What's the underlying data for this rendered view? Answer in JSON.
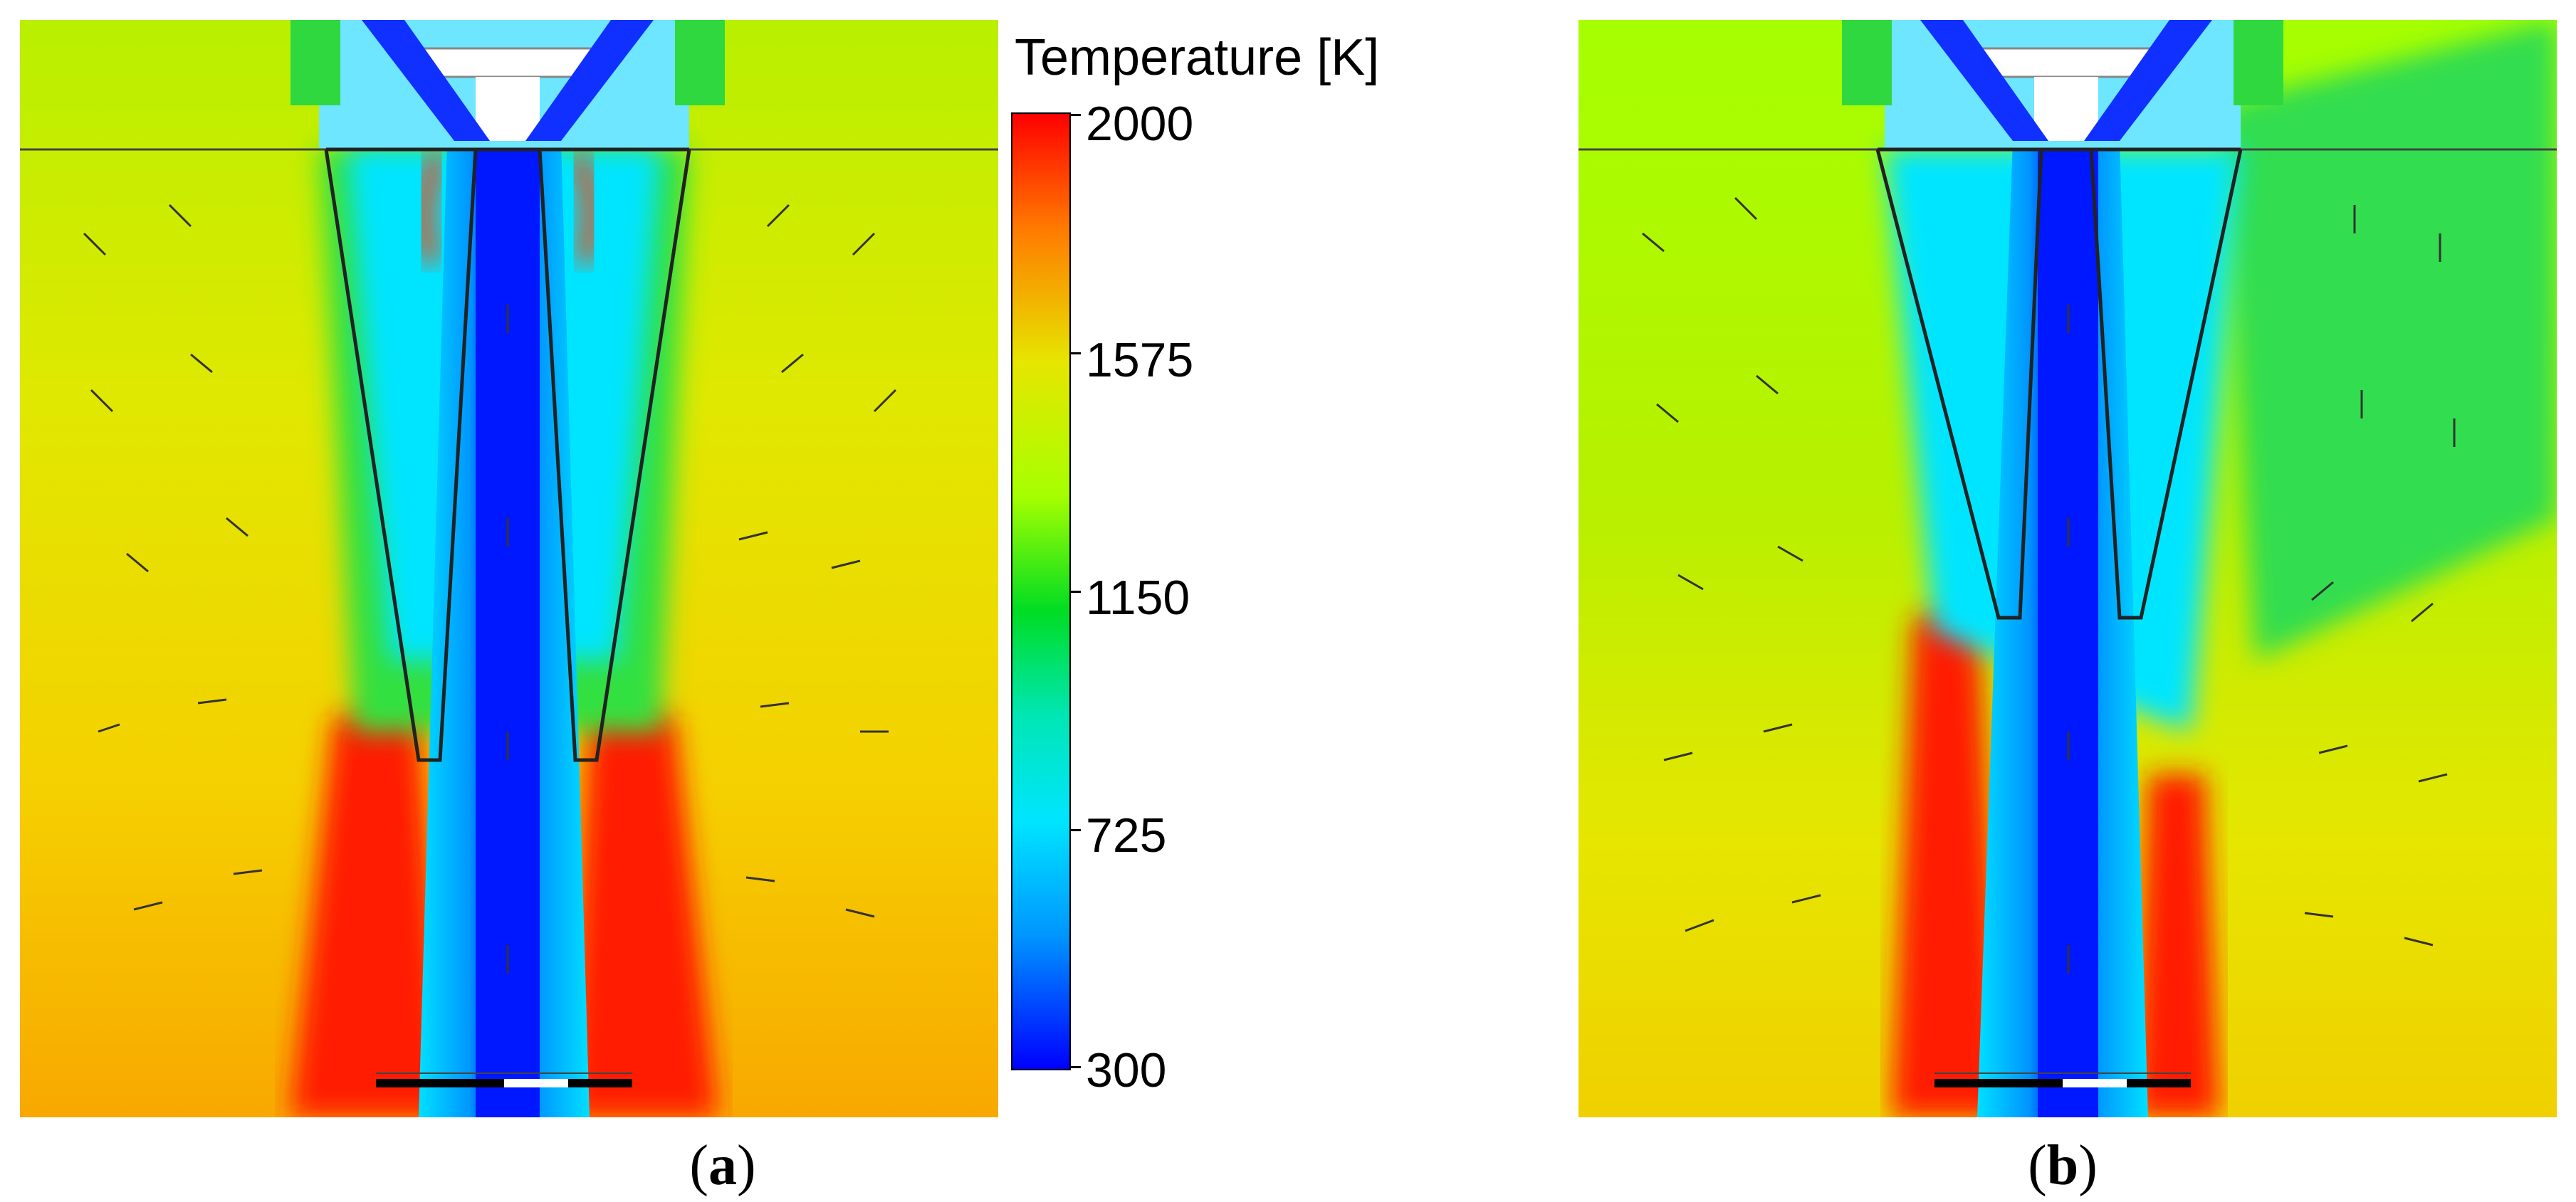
{
  "colorbar": {
    "title": "Temperature [K]",
    "ticks": [
      "2000",
      "1575",
      "1150",
      "725",
      "300"
    ],
    "min": 300,
    "max": 2000,
    "colormap": [
      "#0000ff",
      "#0096ff",
      "#00e5ff",
      "#00e6b4",
      "#00dd22",
      "#a6ff00",
      "#e6e600",
      "#ff7a00",
      "#ff0000"
    ]
  },
  "panels": [
    {
      "label_open": "(",
      "label": "a",
      "label_close": ")"
    },
    {
      "label_open": "(",
      "label": "b",
      "label_close": ")"
    }
  ]
}
